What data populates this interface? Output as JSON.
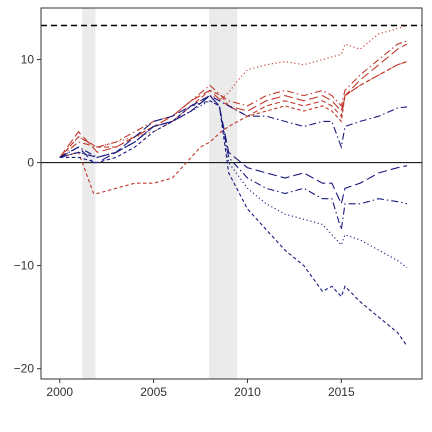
{
  "chart_data": {
    "type": "line",
    "title": "",
    "xlabel": "",
    "ylabel": "",
    "xlim": [
      1999.0,
      2019.3
    ],
    "ylim": [
      -21,
      15
    ],
    "x_ticks": [
      2000,
      2005,
      2010,
      2015
    ],
    "x_tick_labels": [
      "2000",
      "2005",
      "2010",
      "2015"
    ],
    "y_ticks": [
      10,
      0,
      -10,
      -20
    ],
    "y_tick_labels": [
      "10",
      "0",
      "−10",
      "−20"
    ],
    "grid": false,
    "legend": "none",
    "shaded_periods": [
      {
        "start": 2001.2,
        "end": 2001.9
      },
      {
        "start": 2007.95,
        "end": 2009.45
      }
    ],
    "reference_lines": [
      {
        "y": 13.3,
        "style": "dashed",
        "color": "#000000"
      },
      {
        "y": 0,
        "style": "solid",
        "color": "#000000"
      }
    ],
    "series": [
      {
        "color": "#c0392b",
        "dash": "dotted",
        "x": [
          2000,
          2001,
          2002,
          2003,
          2004,
          2005,
          2006,
          2007,
          2008,
          2008.6,
          2009,
          2009.5,
          2010,
          2011,
          2012,
          2013,
          2014,
          2015,
          2015.2,
          2016,
          2017,
          2018,
          2018.5
        ],
        "y": [
          0.5,
          2.5,
          1.5,
          2.0,
          2.5,
          3.0,
          4.0,
          5.5,
          6.5,
          6.2,
          6.8,
          8.0,
          9.0,
          9.5,
          9.8,
          9.5,
          10.0,
          10.5,
          11.5,
          11.0,
          12.5,
          13.0,
          13.3
        ]
      },
      {
        "color": "#c0392b",
        "dash": "longdash",
        "x": [
          2000,
          2001,
          2002,
          2003,
          2004,
          2005,
          2006,
          2007,
          2008,
          2008.6,
          2009,
          2010,
          2011,
          2012,
          2013,
          2014,
          2014.5,
          2015,
          2015.2,
          2016,
          2017,
          2018,
          2018.5
        ],
        "y": [
          0.5,
          3.0,
          1.0,
          1.5,
          2.5,
          3.5,
          4.5,
          6.0,
          7.0,
          6.0,
          5.5,
          5.0,
          6.0,
          6.5,
          6.0,
          6.5,
          6.0,
          5.0,
          6.5,
          8.0,
          9.5,
          11.0,
          11.5
        ]
      },
      {
        "color": "#c0392b",
        "dash": "dashdot",
        "x": [
          2000,
          2001,
          2002,
          2003,
          2004,
          2005,
          2006,
          2007,
          2008,
          2008.6,
          2009,
          2010,
          2011,
          2012,
          2013,
          2014,
          2014.5,
          2015,
          2015.2,
          2016,
          2017,
          2018,
          2018.5
        ],
        "y": [
          0.5,
          2.0,
          1.5,
          2.0,
          3.0,
          4.0,
          4.5,
          6.0,
          7.5,
          6.5,
          6.0,
          5.5,
          6.5,
          7.0,
          6.5,
          7.0,
          6.5,
          5.5,
          7.0,
          8.5,
          10.0,
          11.5,
          11.8
        ]
      },
      {
        "color": "#c0392b",
        "dash": "dashed",
        "x": [
          2000,
          2001,
          2002,
          2003,
          2004,
          2005,
          2006,
          2007,
          2008,
          2008.6,
          2009,
          2010,
          2011,
          2012,
          2013,
          2014,
          2014.5,
          2015,
          2015.2,
          2016,
          2017,
          2018,
          2018.5
        ],
        "y": [
          0.5,
          2.5,
          1.5,
          1.5,
          2.5,
          3.5,
          4.0,
          5.5,
          7.0,
          6.5,
          5.5,
          4.5,
          5.5,
          6.0,
          5.5,
          6.0,
          5.5,
          4.5,
          6.5,
          7.5,
          8.5,
          9.5,
          9.8
        ]
      },
      {
        "color": "#c0392b",
        "dash": "shortdash",
        "x": [
          2000,
          2001,
          2001.8,
          2002,
          2003,
          2004,
          2005,
          2006,
          2007,
          2007.5,
          2008,
          2008.6,
          2009,
          2010,
          2011,
          2012,
          2013,
          2014,
          2014.5,
          2015,
          2015.2,
          2016,
          2017,
          2018,
          2018.5
        ],
        "y": [
          0.5,
          1.0,
          -3.0,
          -3.0,
          -2.5,
          -2.0,
          -2.0,
          -1.5,
          0.5,
          1.5,
          2.0,
          3.0,
          3.5,
          4.5,
          5.0,
          5.5,
          5.0,
          5.5,
          5.0,
          4.0,
          6.5,
          7.5,
          8.5,
          9.5,
          9.8
        ]
      },
      {
        "color": "#1a1a80",
        "dash": "dashdot",
        "x": [
          2000,
          2001,
          2002,
          2003,
          2004,
          2005,
          2006,
          2007,
          2008,
          2008.5,
          2009,
          2009.5,
          2010,
          2011,
          2012,
          2013,
          2014,
          2014.5,
          2015,
          2015.2,
          2016,
          2017,
          2018,
          2018.5
        ],
        "y": [
          0.5,
          1.0,
          0.5,
          1.0,
          2.0,
          3.5,
          4.0,
          5.0,
          6.5,
          6.0,
          5.5,
          5.0,
          4.5,
          4.5,
          4.0,
          3.5,
          4.0,
          4.0,
          1.5,
          3.5,
          4.0,
          4.5,
          5.3,
          5.4
        ]
      },
      {
        "color": "#1a1a80",
        "dash": "longdash",
        "x": [
          2000,
          2001,
          2001.8,
          2002,
          2003,
          2004,
          2005,
          2006,
          2007,
          2008,
          2008.5,
          2009,
          2010,
          2011,
          2012,
          2013,
          2014,
          2014.5,
          2015,
          2015.2,
          2016,
          2017,
          2018,
          2018.5
        ],
        "y": [
          0.5,
          1.5,
          0.0,
          0.0,
          1.0,
          2.5,
          4.0,
          4.5,
          5.5,
          6.5,
          5.5,
          1.0,
          -0.5,
          -1.0,
          -1.5,
          -1.0,
          -2.0,
          -2.0,
          -4.0,
          -2.5,
          -2.0,
          -1.0,
          -0.5,
          -0.3
        ]
      },
      {
        "color": "#1a1a80",
        "dash": "dashdot",
        "x": [
          2000,
          2001,
          2002,
          2003,
          2004,
          2005,
          2006,
          2007,
          2008,
          2008.5,
          2009,
          2010,
          2011,
          2012,
          2013,
          2014,
          2014.5,
          2015,
          2015.2,
          2016,
          2017,
          2018,
          2018.5
        ],
        "y": [
          0.5,
          1.5,
          0.5,
          1.0,
          2.0,
          3.5,
          4.0,
          5.0,
          6.5,
          5.5,
          0.5,
          -1.5,
          -2.5,
          -3.0,
          -2.5,
          -3.5,
          -3.5,
          -6.5,
          -4.0,
          -4.0,
          -3.5,
          -3.8,
          -4.0
        ]
      },
      {
        "color": "#1a1a80",
        "dash": "dotted",
        "x": [
          2000,
          2001,
          2002,
          2003,
          2004,
          2005,
          2006,
          2007,
          2008,
          2008.5,
          2009,
          2010,
          2011,
          2012,
          2013,
          2014,
          2014.5,
          2015,
          2015.2,
          2016,
          2017,
          2018,
          2018.5
        ],
        "y": [
          0.5,
          1.0,
          0.5,
          1.0,
          2.0,
          3.5,
          4.0,
          5.0,
          6.0,
          5.5,
          0.0,
          -2.5,
          -4.0,
          -5.0,
          -5.5,
          -6.0,
          -7.0,
          -8.0,
          -7.0,
          -7.5,
          -8.5,
          -9.5,
          -10.2
        ]
      },
      {
        "color": "#1a1a80",
        "dash": "shortdash",
        "x": [
          2000,
          2001,
          2002,
          2003,
          2004,
          2005,
          2006,
          2007,
          2008,
          2008.5,
          2009,
          2010,
          2011,
          2012,
          2013,
          2014,
          2014.5,
          2015,
          2015.2,
          2016,
          2017,
          2018,
          2018.5
        ],
        "y": [
          0.5,
          0.5,
          0.0,
          0.5,
          1.5,
          3.0,
          4.0,
          5.5,
          6.0,
          5.5,
          -1.0,
          -4.5,
          -6.5,
          -8.5,
          -10.0,
          -12.5,
          -12.0,
          -13.0,
          -12.0,
          -13.5,
          -15.0,
          -16.5,
          -17.8
        ]
      }
    ]
  }
}
